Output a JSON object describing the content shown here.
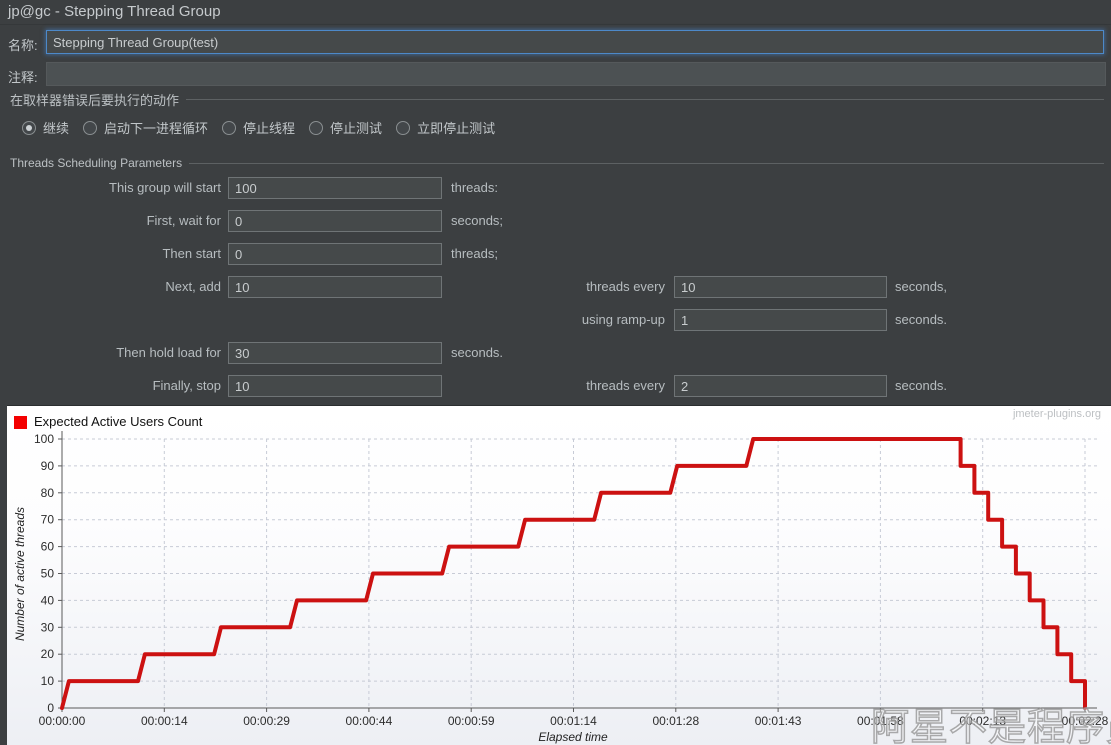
{
  "header": {
    "title": "jp@gc - Stepping Thread Group"
  },
  "name_row": {
    "label": "名称:",
    "value": "Stepping Thread Group(test)"
  },
  "comment_row": {
    "label": "注释:",
    "value": ""
  },
  "error_action": {
    "group_title": "在取样器错误后要执行的动作",
    "options": [
      {
        "label": "继续",
        "selected": true
      },
      {
        "label": "启动下一进程循环",
        "selected": false
      },
      {
        "label": "停止线程",
        "selected": false
      },
      {
        "label": "停止测试",
        "selected": false
      },
      {
        "label": "立即停止测试",
        "selected": false
      }
    ]
  },
  "scheduling": {
    "group_title": "Threads Scheduling Parameters",
    "rows": [
      {
        "label": "This group will start",
        "value": "100",
        "unit": "threads:"
      },
      {
        "label": "First, wait for",
        "value": "0",
        "unit": "seconds;"
      },
      {
        "label": "Then start",
        "value": "0",
        "unit": "threads;"
      },
      {
        "label": "Next, add",
        "value": "10",
        "right": {
          "label": "threads every",
          "value": "10",
          "unit": "seconds,"
        }
      },
      {
        "right": {
          "label": "using ramp-up",
          "value": "1",
          "unit": "seconds."
        }
      },
      {
        "label": "Then hold load for",
        "value": "30",
        "unit": "seconds."
      },
      {
        "label": "Finally, stop",
        "value": "10",
        "right": {
          "label": "threads every",
          "value": "2",
          "unit": "seconds."
        }
      }
    ]
  },
  "colors": {
    "panel_bg": "#3c3f41",
    "focus_border": "#4d89c9",
    "line_red": "#cc1111",
    "legend_red": "#f40000"
  },
  "chart_data": {
    "type": "line",
    "legend": {
      "label": "Expected Active Users Count",
      "color": "#f40000"
    },
    "xlabel": "Elapsed time",
    "ylabel": "Number of active threads",
    "site_watermark": "jmeter-plugins.org",
    "overlay_watermark": "阿星不是程序员",
    "grid": true,
    "xlim": [
      0,
      148
    ],
    "ylim": [
      0,
      100
    ],
    "y_ticks": [
      0,
      10,
      20,
      30,
      40,
      50,
      60,
      70,
      80,
      90,
      100
    ],
    "x_tick_seconds": [
      0,
      14.8,
      29.6,
      44.4,
      59.2,
      74,
      88.8,
      103.6,
      118.4,
      133.2,
      148
    ],
    "x_tick_labels": [
      "00:00:00",
      "00:00:14",
      "00:00:29",
      "00:00:44",
      "00:00:59",
      "00:01:14",
      "00:01:28",
      "00:01:43",
      "00:01:58",
      "00:02:13",
      "00:02:28"
    ],
    "series": [
      {
        "name": "Expected Active Users Count",
        "color": "#cc1111",
        "points": [
          [
            0,
            0
          ],
          [
            1,
            10
          ],
          [
            11,
            10
          ],
          [
            12,
            20
          ],
          [
            22,
            20
          ],
          [
            23,
            30
          ],
          [
            33,
            30
          ],
          [
            34,
            40
          ],
          [
            44,
            40
          ],
          [
            45,
            50
          ],
          [
            55,
            50
          ],
          [
            56,
            60
          ],
          [
            66,
            60
          ],
          [
            67,
            70
          ],
          [
            77,
            70
          ],
          [
            78,
            80
          ],
          [
            88,
            80
          ],
          [
            89,
            90
          ],
          [
            99,
            90
          ],
          [
            100,
            100
          ],
          [
            130,
            100
          ],
          [
            130,
            90
          ],
          [
            132,
            90
          ],
          [
            132,
            80
          ],
          [
            134,
            80
          ],
          [
            134,
            70
          ],
          [
            136,
            70
          ],
          [
            136,
            60
          ],
          [
            138,
            60
          ],
          [
            138,
            50
          ],
          [
            140,
            50
          ],
          [
            140,
            40
          ],
          [
            142,
            40
          ],
          [
            142,
            30
          ],
          [
            144,
            30
          ],
          [
            144,
            20
          ],
          [
            146,
            20
          ],
          [
            146,
            10
          ],
          [
            148,
            10
          ],
          [
            148,
            0
          ]
        ]
      }
    ]
  }
}
